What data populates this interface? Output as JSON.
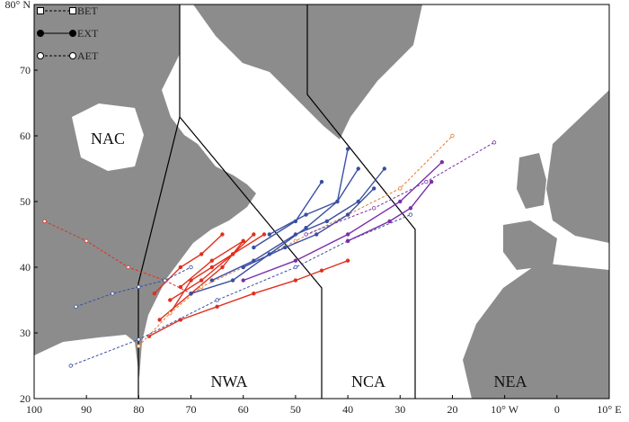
{
  "map": {
    "xlim": [
      -100,
      10
    ],
    "ylim": [
      20,
      80
    ],
    "xticks": [
      {
        "value": -100,
        "label": "100"
      },
      {
        "value": -90,
        "label": "90"
      },
      {
        "value": -80,
        "label": "80"
      },
      {
        "value": -70,
        "label": "70"
      },
      {
        "value": -60,
        "label": "60"
      },
      {
        "value": -50,
        "label": "50"
      },
      {
        "value": -40,
        "label": "40"
      },
      {
        "value": -30,
        "label": "30"
      },
      {
        "value": -20,
        "label": "20"
      },
      {
        "value": -10,
        "label": "10° W"
      },
      0,
      {
        "value": 10,
        "label": "10° E"
      }
    ],
    "yticks": [
      20,
      30,
      40,
      50,
      60,
      70,
      {
        "value": 80,
        "label": "80° N"
      }
    ],
    "regions": [
      "NAC",
      "NWA",
      "NCA",
      "NEA"
    ],
    "legend": [
      {
        "name": "BET",
        "dashed": true,
        "marker": "square"
      },
      {
        "name": "EXT",
        "dashed": false,
        "marker": "filled"
      },
      {
        "name": "AET",
        "dashed": true,
        "marker": "open"
      }
    ],
    "tracks": [
      {
        "color": "#e0301e",
        "dashed": false,
        "lon": [
          -78,
          -72,
          -65,
          -58,
          -50,
          -45,
          -40
        ],
        "lat": [
          29.5,
          32,
          34,
          36,
          38,
          39.5,
          41
        ]
      },
      {
        "color": "#e0301e",
        "dashed": false,
        "lon": [
          -76,
          -70,
          -64,
          -60
        ],
        "lat": [
          32,
          36,
          40,
          44
        ]
      },
      {
        "color": "#e0301e",
        "dashed": false,
        "lon": [
          -74,
          -68,
          -62,
          -56
        ],
        "lat": [
          35,
          38,
          42,
          45
        ]
      },
      {
        "color": "#e0301e",
        "dashed": false,
        "lon": [
          -72,
          -66,
          -60
        ],
        "lat": [
          37,
          41,
          44
        ]
      },
      {
        "color": "#e0301e",
        "dashed": false,
        "lon": [
          -77,
          -72,
          -68,
          -64
        ],
        "lat": [
          36,
          40,
          42,
          45
        ]
      },
      {
        "color": "#e0301e",
        "dashed": false,
        "lon": [
          -74,
          -70,
          -66,
          -62,
          -58
        ],
        "lat": [
          33,
          38,
          40,
          42,
          45
        ]
      },
      {
        "color": "#e0301e",
        "dashed": true,
        "lon": [
          -98,
          -90,
          -82,
          -75,
          -70
        ],
        "lat": [
          47,
          44,
          40,
          38,
          36
        ]
      },
      {
        "color": "#e87a2a",
        "dashed": true,
        "lon": [
          -80,
          -74,
          -68,
          -60,
          -50,
          -40,
          -30,
          -20
        ],
        "lat": [
          28,
          33,
          37,
          40,
          44,
          48,
          52,
          60
        ]
      },
      {
        "color": "#3a4fa0",
        "dashed": false,
        "lon": [
          -70,
          -62,
          -55,
          -48,
          -42,
          -38
        ],
        "lat": [
          36,
          38,
          42,
          46,
          50,
          55
        ]
      },
      {
        "color": "#3a4fa0",
        "dashed": false,
        "lon": [
          -66,
          -58,
          -50,
          -44,
          -38,
          -33
        ],
        "lat": [
          38,
          41,
          45,
          47,
          50,
          55
        ]
      },
      {
        "color": "#3a4fa0",
        "dashed": false,
        "lon": [
          -60,
          -52,
          -46,
          -40,
          -35
        ],
        "lat": [
          40,
          43,
          45,
          48,
          52
        ]
      },
      {
        "color": "#3a4fa0",
        "dashed": false,
        "lon": [
          -55,
          -48,
          -42,
          -40
        ],
        "lat": [
          45,
          48,
          50,
          58
        ]
      },
      {
        "color": "#3a4fa0",
        "dashed": false,
        "lon": [
          -58,
          -50,
          -45
        ],
        "lat": [
          43,
          47,
          53
        ]
      },
      {
        "color": "#3a4fa0",
        "dashed": true,
        "lon": [
          -92,
          -85,
          -80,
          -75,
          -70
        ],
        "lat": [
          34,
          36,
          37,
          38,
          40
        ]
      },
      {
        "color": "#3a4fa0",
        "dashed": true,
        "lon": [
          -93,
          -80,
          -65,
          -50,
          -40,
          -28
        ],
        "lat": [
          25,
          29,
          35,
          40,
          44,
          48
        ]
      },
      {
        "color": "#7b2fa8",
        "dashed": false,
        "lon": [
          -60,
          -50,
          -40,
          -30,
          -22
        ],
        "lat": [
          38,
          41,
          45,
          50,
          56
        ]
      },
      {
        "color": "#7b2fa8",
        "dashed": false,
        "lon": [
          -40,
          -32,
          -28,
          -24
        ],
        "lat": [
          44,
          47,
          49,
          53
        ]
      },
      {
        "color": "#7b2fa8",
        "dashed": true,
        "lon": [
          -48,
          -35,
          -25,
          -12
        ],
        "lat": [
          45,
          49,
          53,
          59
        ]
      }
    ]
  }
}
